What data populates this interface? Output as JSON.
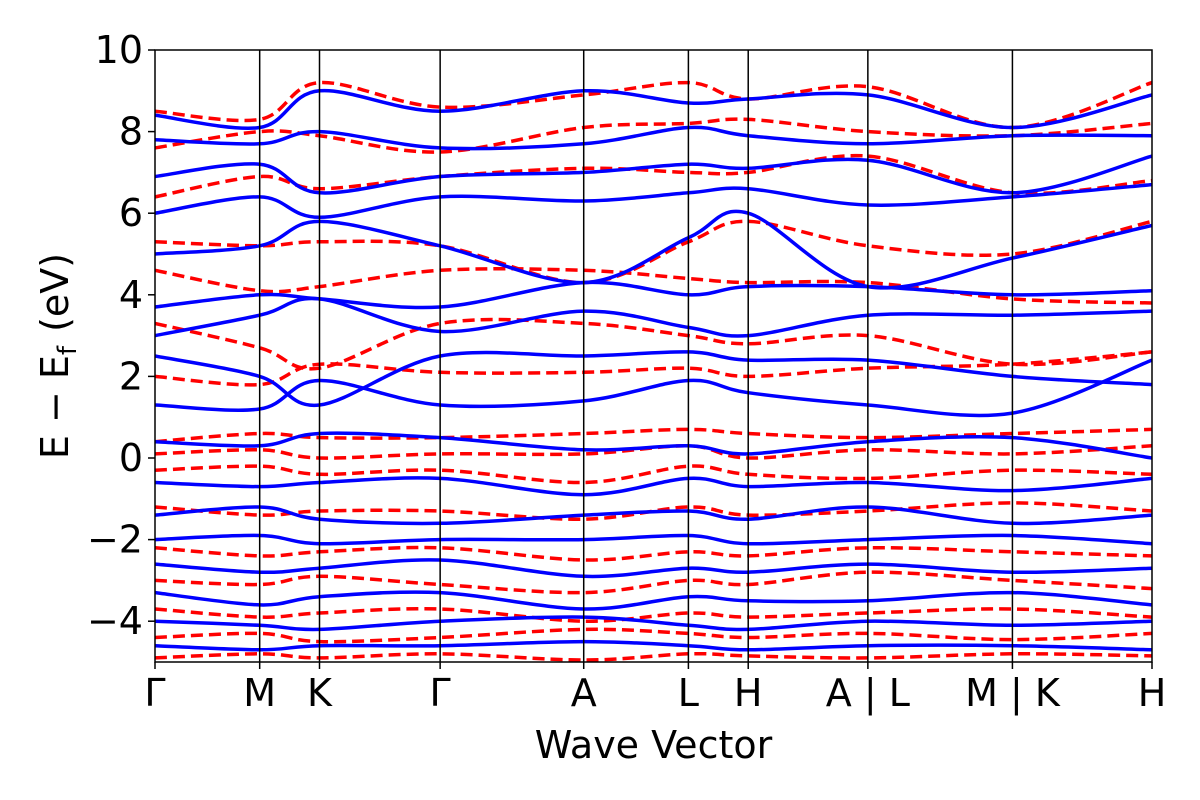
{
  "chart_data": {
    "type": "line",
    "xlabel": "Wave Vector",
    "ylabel": "E − E",
    "ylabel_sub": "f",
    "ylabel_unit": "(eV)",
    "ylim": [
      -5,
      10
    ],
    "xlim": [
      0,
      1
    ],
    "yticks": [
      -4,
      -2,
      0,
      2,
      4,
      6,
      8,
      10
    ],
    "ytick_labels": [
      "−4",
      "−2",
      "0",
      "2",
      "4",
      "6",
      "8",
      "10"
    ],
    "kpoints": [
      {
        "label": "Γ",
        "x": 0.0
      },
      {
        "label": "M",
        "x": 0.105
      },
      {
        "label": "K",
        "x": 0.165
      },
      {
        "label": "Γ",
        "x": 0.286
      },
      {
        "label": "A",
        "x": 0.43
      },
      {
        "label": "L",
        "x": 0.535
      },
      {
        "label": "H",
        "x": 0.595
      },
      {
        "label": "A | L",
        "x": 0.715
      },
      {
        "label": "M | K",
        "x": 0.86
      },
      {
        "label": "H",
        "x": 1.0
      }
    ],
    "series": [
      {
        "style": "dashed",
        "color": "#ff0000",
        "bands": [
          {
            "x": [
              0,
              0.105,
              0.165,
              0.286,
              0.43,
              0.535,
              0.595,
              0.715,
              0.86,
              1.0
            ],
            "y": [
              -4.9,
              -4.8,
              -4.9,
              -4.8,
              -4.95,
              -4.8,
              -4.85,
              -4.9,
              -4.8,
              -4.85
            ]
          },
          {
            "x": [
              0,
              0.105,
              0.165,
              0.286,
              0.43,
              0.535,
              0.595,
              0.715,
              0.86,
              1.0
            ],
            "y": [
              -4.4,
              -4.3,
              -4.5,
              -4.4,
              -4.2,
              -4.3,
              -4.4,
              -4.3,
              -4.45,
              -4.3
            ]
          },
          {
            "x": [
              0,
              0.105,
              0.165,
              0.286,
              0.43,
              0.535,
              0.595,
              0.715,
              0.86,
              1.0
            ],
            "y": [
              -3.7,
              -3.9,
              -3.8,
              -3.7,
              -4.0,
              -3.8,
              -3.9,
              -3.8,
              -3.7,
              -3.9
            ]
          },
          {
            "x": [
              0,
              0.105,
              0.165,
              0.286,
              0.43,
              0.535,
              0.595,
              0.715,
              0.86,
              1.0
            ],
            "y": [
              -3.0,
              -3.1,
              -2.9,
              -3.1,
              -3.3,
              -3.0,
              -3.1,
              -2.8,
              -3.0,
              -3.2
            ]
          },
          {
            "x": [
              0,
              0.105,
              0.165,
              0.286,
              0.43,
              0.535,
              0.595,
              0.715,
              0.86,
              1.0
            ],
            "y": [
              -2.2,
              -2.4,
              -2.3,
              -2.2,
              -2.5,
              -2.3,
              -2.4,
              -2.2,
              -2.3,
              -2.4
            ]
          },
          {
            "x": [
              0,
              0.105,
              0.165,
              0.286,
              0.43,
              0.535,
              0.595,
              0.715,
              0.86,
              1.0
            ],
            "y": [
              -1.2,
              -1.4,
              -1.3,
              -1.3,
              -1.5,
              -1.2,
              -1.4,
              -1.3,
              -1.1,
              -1.3
            ]
          },
          {
            "x": [
              0,
              0.105,
              0.165,
              0.286,
              0.43,
              0.535,
              0.595,
              0.715,
              0.86,
              1.0
            ],
            "y": [
              -0.3,
              -0.2,
              -0.4,
              -0.3,
              -0.6,
              -0.2,
              -0.4,
              -0.5,
              -0.3,
              -0.4
            ]
          },
          {
            "x": [
              0,
              0.105,
              0.165,
              0.286,
              0.43,
              0.535,
              0.595,
              0.715,
              0.86,
              1.0
            ],
            "y": [
              0.1,
              0.2,
              0.0,
              0.1,
              0.1,
              0.3,
              0.0,
              0.2,
              0.1,
              0.3
            ]
          },
          {
            "x": [
              0,
              0.105,
              0.165,
              0.286,
              0.43,
              0.535,
              0.595,
              0.715,
              0.86,
              1.0
            ],
            "y": [
              0.4,
              0.6,
              0.5,
              0.5,
              0.6,
              0.7,
              0.6,
              0.5,
              0.6,
              0.7
            ]
          },
          {
            "x": [
              0,
              0.105,
              0.165,
              0.286,
              0.43,
              0.535,
              0.595,
              0.715,
              0.86,
              1.0
            ],
            "y": [
              2.0,
              1.8,
              2.3,
              2.1,
              2.1,
              2.2,
              2.0,
              2.2,
              2.3,
              2.6
            ]
          },
          {
            "x": [
              0,
              0.105,
              0.165,
              0.286,
              0.43,
              0.535,
              0.595,
              0.715,
              0.86,
              1.0
            ],
            "y": [
              3.3,
              2.7,
              2.2,
              3.3,
              3.3,
              3.0,
              2.8,
              3.0,
              2.3,
              2.6
            ]
          },
          {
            "x": [
              0,
              0.105,
              0.165,
              0.286,
              0.43,
              0.535,
              0.595,
              0.715,
              0.86,
              1.0
            ],
            "y": [
              4.6,
              4.1,
              4.2,
              4.6,
              4.6,
              4.4,
              4.3,
              4.3,
              3.9,
              3.8
            ]
          },
          {
            "x": [
              0,
              0.105,
              0.165,
              0.286,
              0.43,
              0.535,
              0.595,
              0.715,
              0.86,
              1.0
            ],
            "y": [
              5.3,
              5.2,
              5.3,
              5.2,
              4.3,
              5.3,
              5.8,
              5.2,
              5.0,
              5.8
            ]
          },
          {
            "x": [
              0,
              0.105,
              0.165,
              0.286,
              0.43,
              0.535,
              0.595,
              0.715,
              0.86,
              1.0
            ],
            "y": [
              6.4,
              6.9,
              6.6,
              6.9,
              7.1,
              7.0,
              7.0,
              7.4,
              6.5,
              6.8
            ]
          },
          {
            "x": [
              0,
              0.105,
              0.165,
              0.286,
              0.43,
              0.535,
              0.595,
              0.715,
              0.86,
              1.0
            ],
            "y": [
              7.6,
              8.0,
              7.9,
              7.5,
              8.1,
              8.2,
              8.3,
              8.0,
              7.9,
              8.2
            ]
          },
          {
            "x": [
              0,
              0.105,
              0.165,
              0.286,
              0.43,
              0.535,
              0.595,
              0.715,
              0.86,
              1.0
            ],
            "y": [
              8.5,
              8.3,
              9.2,
              8.6,
              8.9,
              9.2,
              8.8,
              9.1,
              8.1,
              9.2
            ]
          }
        ]
      },
      {
        "style": "solid",
        "color": "#0000ff",
        "bands": [
          {
            "x": [
              0,
              0.105,
              0.165,
              0.286,
              0.43,
              0.535,
              0.595,
              0.715,
              0.86,
              1.0
            ],
            "y": [
              -4.6,
              -4.7,
              -4.6,
              -4.6,
              -4.5,
              -4.6,
              -4.7,
              -4.6,
              -4.6,
              -4.7
            ]
          },
          {
            "x": [
              0,
              0.105,
              0.165,
              0.286,
              0.43,
              0.535,
              0.595,
              0.715,
              0.86,
              1.0
            ],
            "y": [
              -4.0,
              -4.1,
              -4.2,
              -4.0,
              -3.9,
              -4.1,
              -4.2,
              -4.0,
              -4.1,
              -4.0
            ]
          },
          {
            "x": [
              0,
              0.105,
              0.165,
              0.286,
              0.43,
              0.535,
              0.595,
              0.715,
              0.86,
              1.0
            ],
            "y": [
              -3.3,
              -3.6,
              -3.4,
              -3.3,
              -3.7,
              -3.4,
              -3.5,
              -3.5,
              -3.3,
              -3.6
            ]
          },
          {
            "x": [
              0,
              0.105,
              0.165,
              0.286,
              0.43,
              0.535,
              0.595,
              0.715,
              0.86,
              1.0
            ],
            "y": [
              -2.6,
              -2.8,
              -2.7,
              -2.5,
              -2.9,
              -2.7,
              -2.8,
              -2.6,
              -2.8,
              -2.7
            ]
          },
          {
            "x": [
              0,
              0.105,
              0.165,
              0.286,
              0.43,
              0.535,
              0.595,
              0.715,
              0.86,
              1.0
            ],
            "y": [
              -2.0,
              -1.9,
              -2.1,
              -2.0,
              -2.0,
              -1.9,
              -2.1,
              -2.0,
              -1.9,
              -2.1
            ]
          },
          {
            "x": [
              0,
              0.105,
              0.165,
              0.286,
              0.43,
              0.535,
              0.595,
              0.715,
              0.86,
              1.0
            ],
            "y": [
              -1.4,
              -1.2,
              -1.5,
              -1.6,
              -1.4,
              -1.3,
              -1.5,
              -1.2,
              -1.6,
              -1.4
            ]
          },
          {
            "x": [
              0,
              0.105,
              0.165,
              0.286,
              0.43,
              0.535,
              0.595,
              0.715,
              0.86,
              1.0
            ],
            "y": [
              -0.6,
              -0.7,
              -0.6,
              -0.5,
              -0.9,
              -0.5,
              -0.7,
              -0.6,
              -0.8,
              -0.5
            ]
          },
          {
            "x": [
              0,
              0.105,
              0.165,
              0.286,
              0.43,
              0.535,
              0.595,
              0.715,
              0.86,
              1.0
            ],
            "y": [
              0.4,
              0.3,
              0.6,
              0.5,
              0.2,
              0.3,
              0.1,
              0.4,
              0.5,
              0.0
            ]
          },
          {
            "x": [
              0,
              0.105,
              0.165,
              0.286,
              0.43,
              0.535,
              0.595,
              0.715,
              0.86,
              1.0
            ],
            "y": [
              1.3,
              1.2,
              1.9,
              1.3,
              1.4,
              1.9,
              1.6,
              1.3,
              1.1,
              2.4
            ]
          },
          {
            "x": [
              0,
              0.105,
              0.165,
              0.286,
              0.43,
              0.535,
              0.595,
              0.715,
              0.86,
              1.0
            ],
            "y": [
              2.5,
              2.0,
              1.3,
              2.5,
              2.5,
              2.6,
              2.4,
              2.4,
              2.0,
              1.8
            ]
          },
          {
            "x": [
              0,
              0.105,
              0.165,
              0.286,
              0.43,
              0.535,
              0.595,
              0.715,
              0.86,
              1.0
            ],
            "y": [
              3.0,
              3.5,
              3.9,
              3.1,
              3.6,
              3.2,
              3.0,
              3.5,
              3.5,
              3.6
            ]
          },
          {
            "x": [
              0,
              0.105,
              0.165,
              0.286,
              0.43,
              0.535,
              0.595,
              0.715,
              0.86,
              1.0
            ],
            "y": [
              3.7,
              4.0,
              3.9,
              3.7,
              4.3,
              4.0,
              4.2,
              4.2,
              4.0,
              4.1
            ]
          },
          {
            "x": [
              0,
              0.105,
              0.165,
              0.286,
              0.43,
              0.535,
              0.595,
              0.715,
              0.86,
              1.0
            ],
            "y": [
              5.0,
              5.2,
              5.8,
              5.2,
              4.3,
              5.4,
              6.0,
              4.2,
              4.9,
              5.7
            ]
          },
          {
            "x": [
              0,
              0.105,
              0.165,
              0.286,
              0.43,
              0.535,
              0.595,
              0.715,
              0.86,
              1.0
            ],
            "y": [
              6.0,
              6.4,
              5.9,
              6.4,
              6.3,
              6.5,
              6.6,
              6.2,
              6.4,
              6.7
            ]
          },
          {
            "x": [
              0,
              0.105,
              0.165,
              0.286,
              0.43,
              0.535,
              0.595,
              0.715,
              0.86,
              1.0
            ],
            "y": [
              6.9,
              7.2,
              6.5,
              6.9,
              7.0,
              7.2,
              7.1,
              7.3,
              6.5,
              7.4
            ]
          },
          {
            "x": [
              0,
              0.105,
              0.165,
              0.286,
              0.43,
              0.535,
              0.595,
              0.715,
              0.86,
              1.0
            ],
            "y": [
              7.8,
              7.7,
              8.0,
              7.6,
              7.7,
              8.1,
              7.9,
              7.7,
              7.9,
              7.9
            ]
          },
          {
            "x": [
              0,
              0.105,
              0.165,
              0.286,
              0.43,
              0.535,
              0.595,
              0.715,
              0.86,
              1.0
            ],
            "y": [
              8.4,
              8.1,
              9.0,
              8.5,
              9.0,
              8.7,
              8.8,
              8.9,
              8.1,
              8.9
            ]
          }
        ]
      }
    ]
  }
}
